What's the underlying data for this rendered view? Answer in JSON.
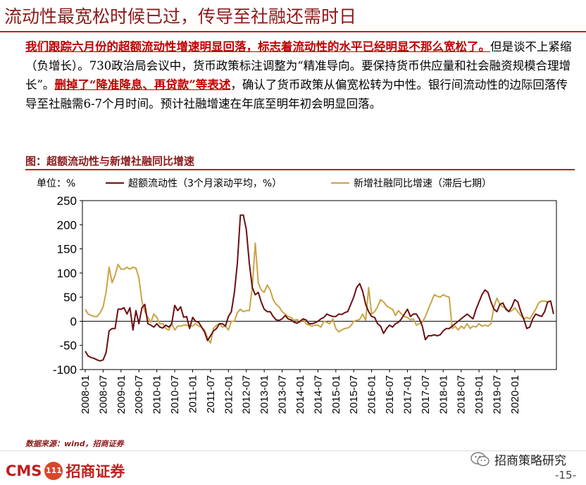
{
  "page": {
    "title": "流动性最宽松时候已过，传导至社融还需时日",
    "paragraph": {
      "hl1": "我们跟踪六月份的超额流动性增速明显回落，标志着流动性的水平已经明显不那么宽松了。",
      "t2": "但是谈不上紧缩（负增长）。730政治局会议中，货币政策标注调整为“精准导向。要保持货币供应量和社会融资规模合理增长”。",
      "hl2": "删掉了“降准降息、再贷款”等表述",
      "t3": "，确认了货币政策从偏宽松转为中性。银行间流动性的边际回落传导至社融需6-7个月时间。预计社融增速在年底至明年初会明显回落。"
    },
    "figure_title": "图：超额流动性与新增社融同比增速",
    "unit_label": "单位：%",
    "source": "数据来源：wind，招商证券",
    "logo_latin": "CMS",
    "logo_cn": "招商证券",
    "wechat_name": "招商策略研究",
    "page_number": "-15-"
  },
  "colors": {
    "series1": "#6b0f12",
    "series2": "#c9a445",
    "accent": "#c41e1e"
  },
  "chart_data": {
    "type": "line",
    "title": "超额流动性与新增社融同比增速",
    "ylim": [
      -100,
      250
    ],
    "yticks": [
      -100,
      -50,
      0,
      50,
      100,
      150,
      200,
      250
    ],
    "xticks": [
      "2008-01",
      "2008-07",
      "2009-01",
      "2009-07",
      "2010-01",
      "2010-07",
      "2011-01",
      "2011-07",
      "2012-01",
      "2012-07",
      "2013-01",
      "2013-07",
      "2014-01",
      "2014-07",
      "2015-01",
      "2015-07",
      "2016-01",
      "2016-07",
      "2017-01",
      "2017-07",
      "2018-01",
      "2018-07",
      "2019-01",
      "2019-07",
      "2020-01"
    ],
    "x_start": "2008-01",
    "grid": false,
    "series": [
      {
        "name": "超额流动性（3个月滚动平均，%）",
        "color": "#6b0f12",
        "values": [
          -62,
          -72,
          -75,
          -77,
          -80,
          -82,
          -80,
          -65,
          -20,
          -15,
          -15,
          25,
          25,
          28,
          15,
          28,
          -18,
          22,
          -5,
          28,
          35,
          -5,
          -8,
          -12,
          -5,
          -12,
          -14,
          -8,
          -12,
          -5,
          33,
          22,
          30,
          8,
          10,
          -15,
          8,
          0,
          -2,
          -12,
          -22,
          -40,
          -30,
          -20,
          -15,
          -5,
          -5,
          -10,
          10,
          20,
          60,
          120,
          220,
          220,
          190,
          120,
          70,
          55,
          60,
          40,
          25,
          20,
          20,
          10,
          3,
          2,
          5,
          12,
          5,
          3,
          -2,
          -4,
          0,
          5,
          3,
          -5,
          -5,
          -3,
          0,
          5,
          8,
          15,
          12,
          10,
          10,
          15,
          14,
          18,
          20,
          35,
          50,
          70,
          78,
          62,
          35,
          20,
          10,
          8,
          -5,
          -10,
          -25,
          -15,
          -8,
          -12,
          -5,
          -2,
          5,
          15,
          25,
          10,
          15,
          15,
          5,
          -10,
          -38,
          -30,
          -30,
          -28,
          -30,
          -28,
          -20,
          -15,
          -15,
          -10,
          -5,
          0,
          5,
          10,
          15,
          10,
          5,
          25,
          40,
          55,
          65,
          60,
          40,
          25,
          20,
          35,
          38,
          25,
          20,
          30,
          45,
          40,
          20,
          5,
          -15,
          -12,
          5,
          15,
          12,
          10,
          20,
          40,
          42,
          15
        ]
      },
      {
        "name": "新增社融同比增速（滞后七期）",
        "color": "#c9a445",
        "values": [
          25,
          15,
          12,
          10,
          10,
          18,
          30,
          60,
          112,
          80,
          95,
          118,
          108,
          108,
          112,
          108,
          112,
          110,
          90,
          42,
          20,
          8,
          -2,
          15,
          8,
          -5,
          -5,
          -15,
          -18,
          -5,
          -18,
          -10,
          -10,
          -8,
          -8,
          -10,
          -10,
          -5,
          -10,
          -12,
          -18,
          -35,
          -45,
          -15,
          -8,
          -5,
          -12,
          -10,
          -18,
          0,
          0,
          18,
          25,
          20,
          22,
          22,
          70,
          162,
          80,
          65,
          60,
          75,
          65,
          45,
          35,
          30,
          20,
          15,
          10,
          8,
          2,
          4,
          -2,
          5,
          -5,
          -8,
          -10,
          -8,
          -8,
          -12,
          0,
          -2,
          -5,
          5,
          -15,
          -22,
          -18,
          -15,
          -14,
          -10,
          0,
          2,
          4,
          15,
          2,
          70,
          15,
          20,
          30,
          45,
          40,
          32,
          28,
          25,
          12,
          22,
          15,
          10,
          8,
          3,
          5,
          -8,
          -5,
          -2,
          10,
          25,
          40,
          55,
          52,
          50,
          55,
          52,
          50,
          -15,
          -10,
          -18,
          -10,
          -15,
          -5,
          -15,
          -10,
          -12,
          -5,
          -10,
          -8,
          -10,
          -5,
          30,
          48,
          35,
          30,
          28,
          20,
          22,
          28,
          20,
          12,
          5,
          8,
          5,
          15,
          25,
          38,
          42,
          42,
          40
        ]
      }
    ]
  }
}
